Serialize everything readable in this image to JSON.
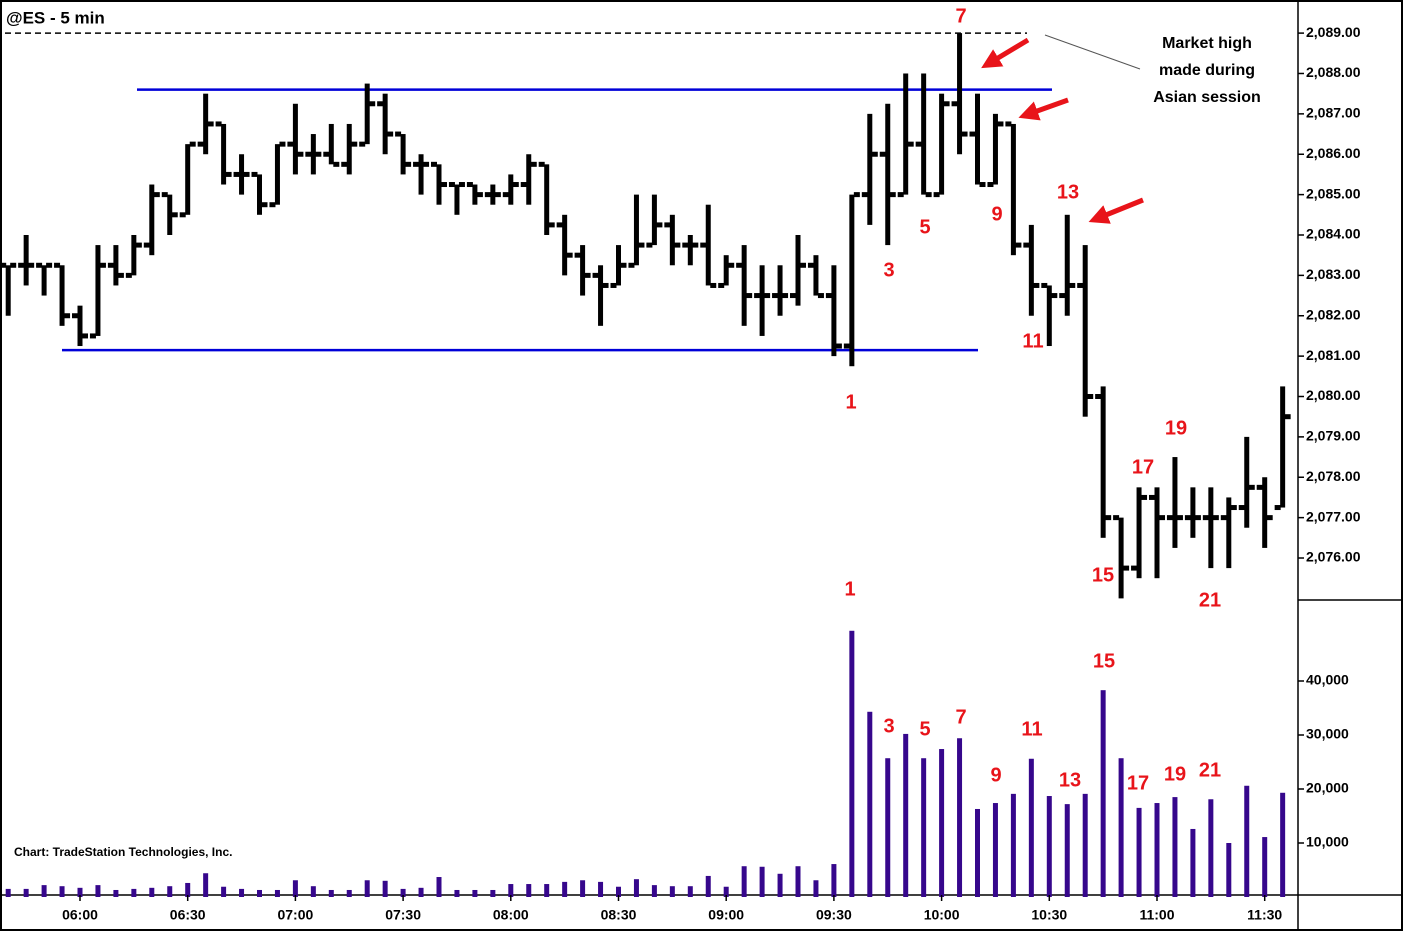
{
  "chart_data": [
    {
      "type": "ohlc",
      "title": "@ES - 5 min",
      "color": "#000000",
      "open": [
        2083.25,
        2083.25,
        2083.25,
        2083.25,
        2082.0,
        2081.5,
        2083.25,
        2083.0,
        2083.75,
        2085.0,
        2084.5,
        2086.25,
        2086.75,
        2085.5,
        2085.5,
        2084.75,
        2086.25,
        2086.0,
        2086.0,
        2085.75,
        2086.25,
        2087.25,
        2086.5,
        2085.75,
        2085.75,
        2085.25,
        2085.25,
        2085.0,
        2085.0,
        2085.25,
        2085.75,
        2084.25,
        2083.5,
        2083.0,
        2082.75,
        2083.25,
        2083.75,
        2084.25,
        2083.75,
        2083.75,
        2082.75,
        2083.25,
        2082.5,
        2082.5,
        2082.5,
        2083.25,
        2082.5,
        2081.25,
        2085.0,
        2086.0,
        2085.0,
        2086.25,
        2085.0,
        2087.25,
        2086.5,
        2085.25,
        2086.75,
        2083.75,
        2082.75,
        2082.5,
        2082.75,
        2080.0,
        2077.0,
        2075.75,
        2077.5,
        2077.0,
        2077.0,
        2077.0,
        2077.0,
        2077.25,
        2077.75,
        2077.25
      ],
      "high": [
        2083.25,
        2084.0,
        2083.25,
        2083.25,
        2082.25,
        2083.75,
        2083.75,
        2084.0,
        2085.25,
        2085.0,
        2086.25,
        2087.5,
        2086.75,
        2086.0,
        2085.5,
        2086.25,
        2087.25,
        2086.5,
        2086.75,
        2086.75,
        2087.75,
        2087.5,
        2086.5,
        2086.0,
        2085.75,
        2085.25,
        2085.25,
        2085.25,
        2085.5,
        2086.0,
        2085.75,
        2084.5,
        2083.75,
        2083.25,
        2083.75,
        2085.0,
        2085.0,
        2084.5,
        2084.0,
        2084.75,
        2083.5,
        2083.75,
        2083.25,
        2083.25,
        2084.0,
        2083.5,
        2083.25,
        2085.0,
        2087.0,
        2087.25,
        2088.0,
        2088.0,
        2087.5,
        2089.0,
        2087.5,
        2087.0,
        2086.75,
        2084.25,
        2082.75,
        2084.5,
        2083.75,
        2080.25,
        2077.0,
        2077.75,
        2077.75,
        2078.5,
        2077.75,
        2077.75,
        2077.5,
        2079.0,
        2078.0,
        2080.25
      ],
      "low": [
        2082.0,
        2082.75,
        2082.5,
        2081.75,
        2081.25,
        2081.5,
        2082.75,
        2083.0,
        2083.5,
        2084.0,
        2084.5,
        2086.0,
        2085.25,
        2085.0,
        2084.5,
        2084.75,
        2085.5,
        2085.5,
        2085.75,
        2085.5,
        2086.25,
        2086.0,
        2085.5,
        2085.0,
        2084.75,
        2084.5,
        2084.75,
        2084.75,
        2084.75,
        2084.75,
        2084.0,
        2083.0,
        2082.5,
        2081.75,
        2082.75,
        2083.25,
        2083.75,
        2083.25,
        2083.25,
        2082.75,
        2082.75,
        2081.75,
        2081.5,
        2082.0,
        2082.25,
        2082.5,
        2081.0,
        2080.75,
        2084.25,
        2083.75,
        2085.0,
        2085.0,
        2085.0,
        2086.0,
        2085.25,
        2085.25,
        2083.5,
        2082.0,
        2081.25,
        2082.0,
        2079.5,
        2076.5,
        2075.0,
        2075.5,
        2075.5,
        2076.25,
        2076.5,
        2075.75,
        2075.75,
        2076.75,
        2076.25,
        2077.25
      ],
      "close": [
        2083.25,
        2083.25,
        2083.25,
        2082.0,
        2081.5,
        2083.25,
        2083.0,
        2083.75,
        2085.0,
        2084.5,
        2086.25,
        2086.75,
        2085.5,
        2085.5,
        2084.75,
        2086.25,
        2086.0,
        2086.0,
        2085.75,
        2086.25,
        2087.25,
        2086.5,
        2085.75,
        2085.75,
        2085.25,
        2085.25,
        2085.0,
        2085.0,
        2085.25,
        2085.75,
        2084.25,
        2083.5,
        2083.0,
        2082.75,
        2083.25,
        2083.75,
        2084.25,
        2083.75,
        2083.75,
        2082.75,
        2083.25,
        2082.5,
        2082.5,
        2082.5,
        2083.25,
        2082.5,
        2081.25,
        2085.0,
        2086.0,
        2085.0,
        2086.25,
        2085.0,
        2087.25,
        2086.5,
        2085.25,
        2086.75,
        2083.75,
        2082.75,
        2082.5,
        2082.75,
        2080.0,
        2077.0,
        2075.75,
        2077.5,
        2077.0,
        2077.0,
        2077.0,
        2077.0,
        2077.25,
        2077.75,
        2077.0,
        2079.5
      ],
      "ylim": [
        2074.96,
        2089.82
      ],
      "yticks": [
        {
          "value": 2089,
          "label": "2,089.00"
        },
        {
          "value": 2088,
          "label": "2,088.00"
        },
        {
          "value": 2087,
          "label": "2,087.00"
        },
        {
          "value": 2086,
          "label": "2,086.00"
        },
        {
          "value": 2085,
          "label": "2,085.00"
        },
        {
          "value": 2084,
          "label": "2,084.00"
        },
        {
          "value": 2083,
          "label": "2,083.00"
        },
        {
          "value": 2082,
          "label": "2,082.00"
        },
        {
          "value": 2081,
          "label": "2,081.00"
        },
        {
          "value": 2080,
          "label": "2,080.00"
        },
        {
          "value": 2079,
          "label": "2,079.00"
        },
        {
          "value": 2078,
          "label": "2,078.00"
        },
        {
          "value": 2077,
          "label": "2,077.00"
        },
        {
          "value": 2076,
          "label": "2,076.00"
        }
      ],
      "lines": [
        {
          "value": 2089,
          "color": "#000000",
          "style": "dashed"
        },
        {
          "value": 2087.6,
          "color": "#0000d8",
          "style": "solid"
        },
        {
          "value": 2081.15,
          "color": "#0000d8",
          "style": "solid"
        }
      ],
      "annotations": [
        "1",
        "3",
        "5",
        "7",
        "9",
        "11",
        "13",
        "15",
        "17",
        "19",
        "21"
      ],
      "note": [
        "Market high",
        "made during",
        "Asian session"
      ]
    },
    {
      "type": "bar",
      "color": "#36078c",
      "credit": "Chart: TradeStation Technologies, Inc.",
      "categories": [
        null,
        null,
        null,
        null,
        "06:00",
        null,
        null,
        null,
        null,
        null,
        "06:30",
        null,
        null,
        null,
        null,
        null,
        "07:00",
        null,
        null,
        null,
        null,
        null,
        "07:30",
        null,
        null,
        null,
        null,
        null,
        "08:00",
        null,
        null,
        null,
        null,
        null,
        "08:30",
        null,
        null,
        null,
        null,
        null,
        "09:00",
        null,
        null,
        null,
        null,
        null,
        "09:30",
        null,
        null,
        null,
        null,
        null,
        "10:00",
        null,
        null,
        null,
        null,
        null,
        "10:30",
        null,
        null,
        null,
        null,
        null,
        "11:00",
        null,
        null,
        null,
        null,
        null,
        "11:30",
        null
      ],
      "values": [
        1500,
        1500,
        2200,
        2000,
        1700,
        2200,
        1300,
        1500,
        1700,
        2000,
        2600,
        4400,
        1900,
        1500,
        1300,
        1300,
        3100,
        2000,
        1300,
        1300,
        3100,
        3000,
        1500,
        1700,
        3700,
        1300,
        1300,
        1300,
        2400,
        2400,
        2400,
        2800,
        3100,
        2800,
        1900,
        3300,
        2200,
        2000,
        2000,
        3900,
        1900,
        5700,
        5600,
        4300,
        5700,
        3100,
        6100,
        49300,
        34300,
        25700,
        30200,
        25700,
        27400,
        29400,
        16300,
        17400,
        19100,
        25600,
        18700,
        17200,
        19100,
        38300,
        25700,
        16500,
        17400,
        18500,
        12600,
        18100,
        10000,
        20600,
        11100,
        19300
      ],
      "ylim": [
        0,
        55000
      ],
      "yticks": [
        {
          "value": 10000,
          "label": "10,000"
        },
        {
          "value": 20000,
          "label": "20,000"
        },
        {
          "value": 30000,
          "label": "30,000"
        },
        {
          "value": 40000,
          "label": "40,000"
        }
      ],
      "annotations": [
        "1",
        "3",
        "5",
        "7",
        "9",
        "11",
        "13",
        "15",
        "17",
        "19",
        "21"
      ]
    }
  ]
}
